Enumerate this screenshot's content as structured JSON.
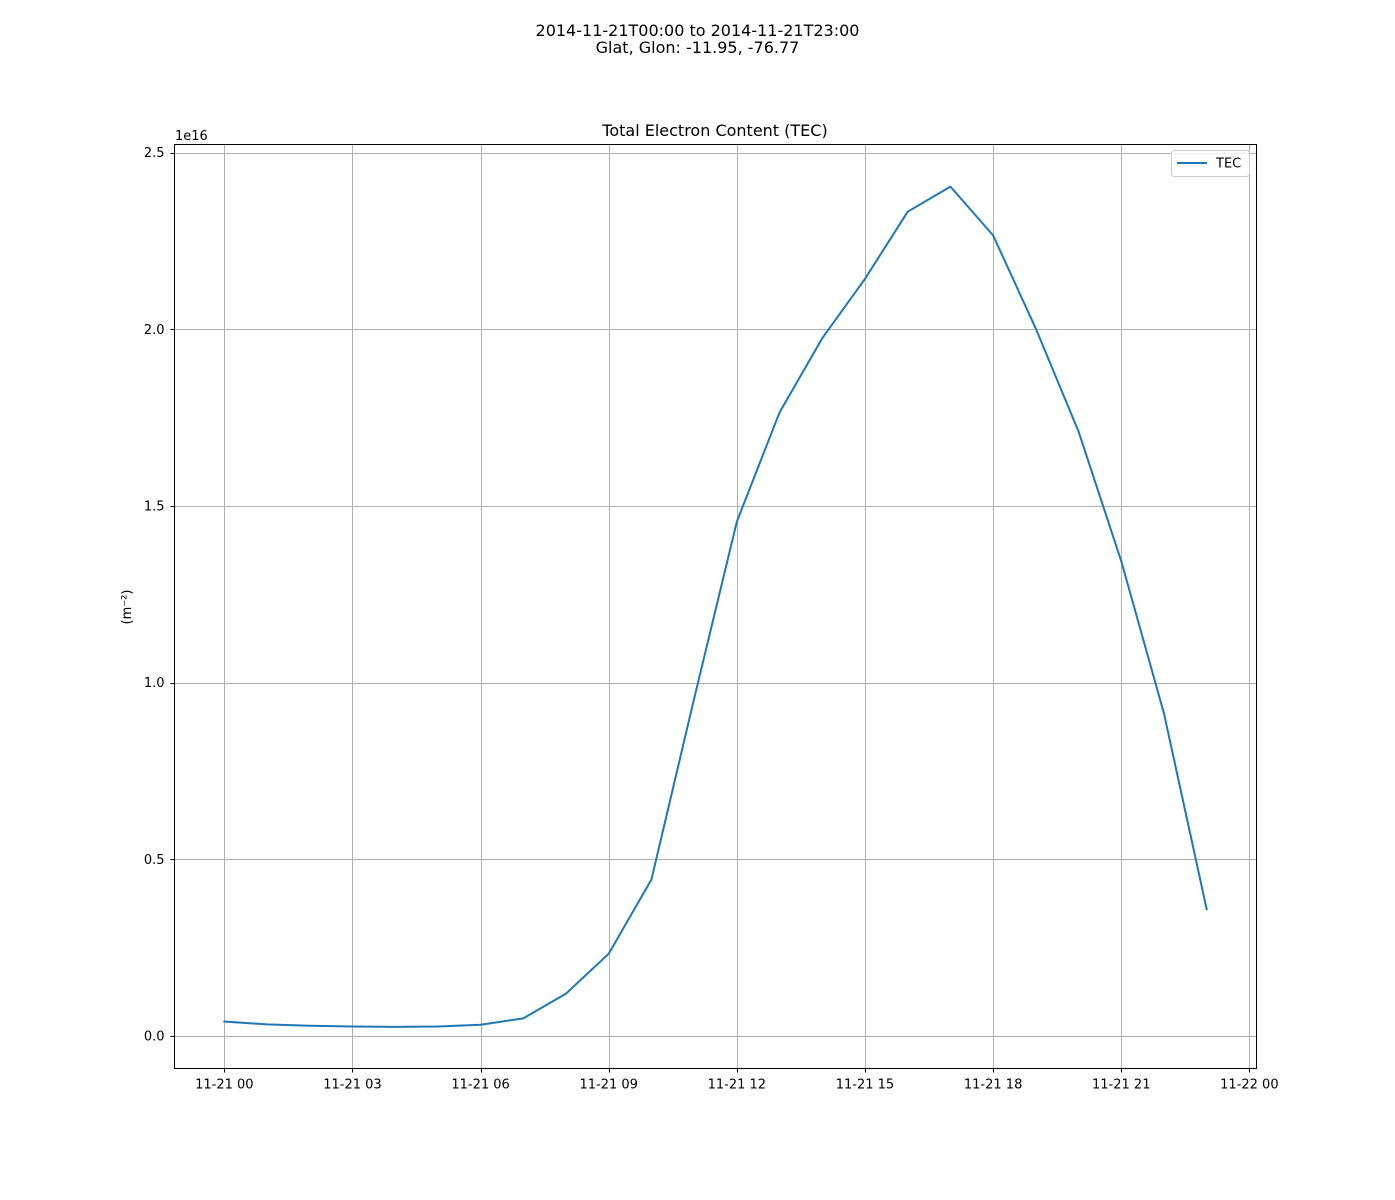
{
  "figure": {
    "suptitle_line1": "2014-11-21T00:00 to 2014-11-21T23:00",
    "suptitle_line2": "Glat, Glon: -11.95, -76.77"
  },
  "chart_data": {
    "type": "line",
    "title": "Total Electron Content (TEC)",
    "xlabel": "",
    "ylabel": "(m⁻²)",
    "y_offset_label": "1e16",
    "y_scale_factor": 1e+16,
    "x": [
      "2014-11-21T00:00",
      "2014-11-21T01:00",
      "2014-11-21T02:00",
      "2014-11-21T03:00",
      "2014-11-21T04:00",
      "2014-11-21T05:00",
      "2014-11-21T06:00",
      "2014-11-21T07:00",
      "2014-11-21T08:00",
      "2014-11-21T09:00",
      "2014-11-21T10:00",
      "2014-11-21T11:00",
      "2014-11-21T12:00",
      "2014-11-21T13:00",
      "2014-11-21T14:00",
      "2014-11-21T15:00",
      "2014-11-21T16:00",
      "2014-11-21T17:00",
      "2014-11-21T18:00",
      "2014-11-21T19:00",
      "2014-11-21T20:00",
      "2014-11-21T21:00",
      "2014-11-21T22:00",
      "2014-11-21T23:00"
    ],
    "series": [
      {
        "name": "TEC",
        "color": "#1f77b4",
        "values": [
          0.041,
          0.033,
          0.029,
          0.027,
          0.026,
          0.027,
          0.032,
          0.05,
          0.12,
          0.233,
          0.443,
          0.955,
          1.456,
          1.765,
          1.975,
          2.143,
          2.333,
          2.404,
          2.266,
          2.002,
          1.711,
          1.344,
          0.913,
          0.359
        ]
      }
    ],
    "x_ticks": [
      "11-21 00",
      "11-21 03",
      "11-21 06",
      "11-21 09",
      "11-21 12",
      "11-21 15",
      "11-21 18",
      "11-21 21",
      "11-22 00"
    ],
    "x_tick_hours": [
      0,
      3,
      6,
      9,
      12,
      15,
      18,
      21,
      24
    ],
    "x_range": [
      "2014-11-20T22:50",
      "2014-11-22T00:10"
    ],
    "y_ticks": [
      "0.0",
      "0.5",
      "1.0",
      "1.5",
      "2.0",
      "2.5"
    ],
    "y_tick_values": [
      0.0,
      0.5,
      1.0,
      1.5,
      2.0,
      2.5
    ],
    "ylim": [
      -0.0919,
      2.5232
    ],
    "grid": true,
    "legend_position": "top-right"
  }
}
